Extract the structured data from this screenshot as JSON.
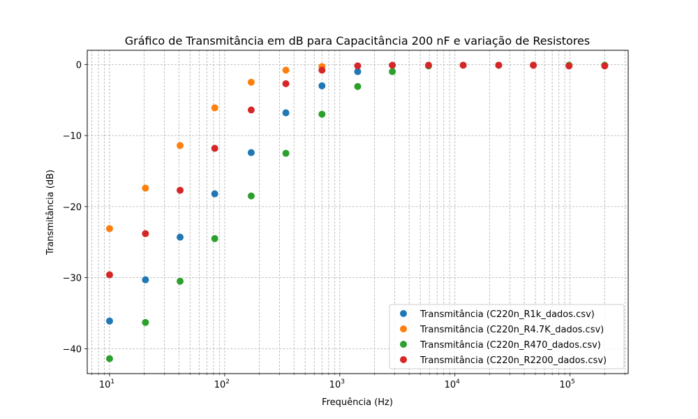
{
  "chart_data": {
    "type": "scatter",
    "title": "Gráfico de Transmitância em dB para Capacitância 200 nF e variação de Resistores",
    "xlabel": "Frequência (Hz)",
    "ylabel": "Transmitância (dB)",
    "xscale": "log",
    "xlim": [
      6.4,
      320000
    ],
    "ylim": [
      -43.5,
      2
    ],
    "x_ticks": [
      {
        "value": 10,
        "base": "10",
        "exp": "1"
      },
      {
        "value": 100,
        "base": "10",
        "exp": "2"
      },
      {
        "value": 1000,
        "base": "10",
        "exp": "3"
      },
      {
        "value": 10000,
        "base": "10",
        "exp": "4"
      },
      {
        "value": 100000,
        "base": "10",
        "exp": "5"
      }
    ],
    "y_ticks": [
      {
        "value": 0,
        "label": "0"
      },
      {
        "value": -10,
        "label": "−10"
      },
      {
        "value": -20,
        "label": "−20"
      },
      {
        "value": -30,
        "label": "−30"
      },
      {
        "value": -40,
        "label": "−40"
      }
    ],
    "grid": true,
    "legend_position": "lower-right",
    "series": [
      {
        "name": "Transmitância (C220n_R1k_dados.csv)",
        "color": "#1f77b4",
        "x": [
          10,
          20.5,
          41,
          82,
          170,
          340,
          700,
          1430
        ],
        "y": [
          -36.1,
          -30.3,
          -24.3,
          -18.2,
          -12.4,
          -6.8,
          -3.0,
          -1.0
        ]
      },
      {
        "name": "Transmitância (C220n_R4.7K_dados.csv)",
        "color": "#ff7f0e",
        "x": [
          10,
          20.5,
          41,
          82,
          170,
          340,
          700
        ],
        "y": [
          -23.1,
          -17.4,
          -11.4,
          -6.1,
          -2.5,
          -0.8,
          -0.3
        ]
      },
      {
        "name": "Transmitância (C220n_R470_dados.csv)",
        "color": "#2ca02c",
        "x": [
          10,
          20.5,
          41,
          82,
          170,
          340,
          700,
          1430,
          2860,
          5900,
          11800,
          24000,
          48000,
          98000,
          200000
        ],
        "y": [
          -41.4,
          -36.3,
          -30.5,
          -24.5,
          -18.5,
          -12.5,
          -7.0,
          -3.1,
          -1.0,
          -0.2,
          -0.1,
          -0.1,
          -0.1,
          -0.1,
          -0.1
        ]
      },
      {
        "name": "Transmitância (C220n_R2200_dados.csv)",
        "color": "#d62728",
        "x": [
          10,
          20.5,
          41,
          82,
          170,
          340,
          700,
          1430,
          2860,
          5900,
          11800,
          24000,
          48000,
          98000,
          200000
        ],
        "y": [
          -29.6,
          -23.8,
          -17.7,
          -11.8,
          -6.4,
          -2.7,
          -0.8,
          -0.2,
          -0.1,
          -0.1,
          -0.1,
          -0.1,
          -0.1,
          -0.2,
          -0.2
        ]
      }
    ]
  }
}
